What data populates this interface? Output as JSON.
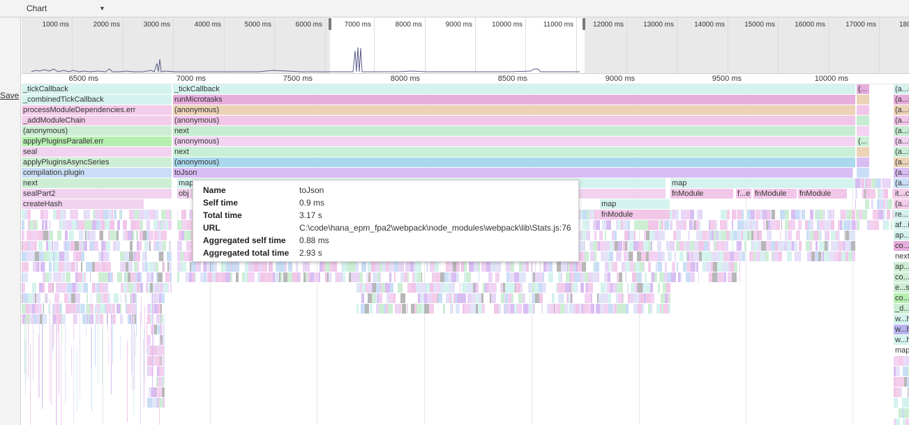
{
  "toolbar": {
    "view_selector": "Chart"
  },
  "left_gutter": {
    "save_label": "Save"
  },
  "overview": {
    "tick_labels": [
      "1000 ms",
      "2000 ms",
      "3000 ms",
      "4000 ms",
      "5000 ms",
      "6000 ms",
      "7000 ms",
      "8000 ms",
      "9000 ms",
      "10000 ms",
      "11000 ms",
      "12000 ms",
      "13000 ms",
      "14000 ms",
      "15000 ms",
      "16000 ms",
      "17000 ms",
      "180"
    ]
  },
  "ruler": {
    "tick_labels": [
      "6500 ms",
      "7000 ms",
      "7500 ms",
      "8000 ms",
      "8500 ms",
      "9000 ms",
      "9500 ms",
      "10000 ms"
    ]
  },
  "left_stack": [
    {
      "label": "_tickCallback",
      "color": "#d5f3ee"
    },
    {
      "label": "_combinedTickCallback",
      "color": "#d5f3ee"
    },
    {
      "label": "processModuleDependencies.err",
      "color": "#f4cdea"
    },
    {
      "label": "_addModuleChain",
      "color": "#f4cdea"
    },
    {
      "label": "(anonymous)",
      "color": "#cdeed4"
    },
    {
      "label": "applyPluginsParallel.err",
      "color": "#b6efb0"
    },
    {
      "label": "seal",
      "color": "#f1d2ef"
    },
    {
      "label": "applyPluginsAsyncSeries",
      "color": "#cdeed4"
    },
    {
      "label": "compilation.plugin",
      "color": "#c9def6"
    },
    {
      "label": "next",
      "color": "#cdeed4"
    },
    {
      "label": "sealPart2",
      "color": "#f1d2ef"
    },
    {
      "label": "createHash",
      "color": "#f1d2ef"
    }
  ],
  "main_stack": [
    {
      "label": "_tickCallback",
      "color": "#d5f3ee"
    },
    {
      "label": "runMicrotasks",
      "color": "#e6aedc"
    },
    {
      "label": "(anonymous)",
      "color": "#ecd2b6"
    },
    {
      "label": "(anonymous)",
      "color": "#f1c6e8"
    },
    {
      "label": "next",
      "color": "#c6ecd2"
    },
    {
      "label": "(anonymous)",
      "color": "#f3d2f3"
    },
    {
      "label": "next",
      "color": "#c9efd6"
    },
    {
      "label": "(anonymous)",
      "color": "#a9d9ec"
    },
    {
      "label": "toJson",
      "color": "#d8bdf3"
    }
  ],
  "partial_frames": {
    "row9_left": "map",
    "row10_left": "obj",
    "row9_right": "map",
    "row10_right": [
      "fnModule",
      "f...e",
      "fnModule",
      "fnModule"
    ],
    "row11_mid": "map",
    "row12_mid": "fnModule"
  },
  "right_column": [
    "(a...s",
    "(a...s",
    "(a...s",
    "(a...s",
    "(a...s",
    "(a...s",
    "(a...s",
    "(a...s",
    "(a...s",
    "(a...s",
    "it...c",
    "(a...s",
    "re...",
    "af...i",
    "ap...",
    "co...",
    "next",
    "ap...",
    "co...",
    "e...s",
    "co...",
    "_d...",
    "w...h",
    "w...h",
    "w...h",
    "map"
  ],
  "right_column_colors": [
    "#d5f3ee",
    "#e6aedc",
    "#ecd2b6",
    "#f1c6e8",
    "#c6ecd2",
    "#f3d2f3",
    "#c9efd6",
    "#ecd2b6",
    "#d8bdf3",
    "#c9def6",
    "#f4cdea",
    "#f4cdea",
    "#d5f3ee",
    "#d5f3ee",
    "#d5f3ee",
    "#e6aedc",
    "#ffffff",
    "#cdeed4",
    "#cdeed4",
    "#cdeed4",
    "#b6efb0",
    "#cdeed4",
    "#d5f3ee",
    "#b9b3ee",
    "#d5f3ee",
    "#ffffff"
  ],
  "small_stack": [
    "(...",
    "(..."
  ],
  "tooltip": {
    "rows": [
      {
        "key": "Name",
        "value": "toJson"
      },
      {
        "key": "Self time",
        "value": "0.9 ms"
      },
      {
        "key": "Total time",
        "value": "3.17 s"
      },
      {
        "key": "URL",
        "value": "C:\\code\\hana_epm_fpa2\\webpack\\node_modules\\webpack\\lib\\Stats.js:76"
      },
      {
        "key": "Aggregated self time",
        "value": "0.88 ms"
      },
      {
        "key": "Aggregated total time",
        "value": "2.93 s"
      }
    ]
  }
}
